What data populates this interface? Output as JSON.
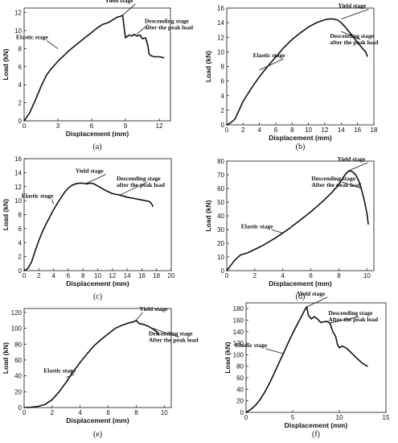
{
  "chart_data": [
    {
      "type": "line",
      "caption": "(a)",
      "xlabel": "Displacement (mm)",
      "ylabel": "Load (kN)",
      "xlim": [
        0,
        13
      ],
      "ylim": [
        0,
        12.5
      ],
      "xticks": [
        0,
        3,
        6,
        9,
        12
      ],
      "yticks": [
        0,
        2,
        4,
        6,
        8,
        10,
        12
      ],
      "x": [
        0,
        0.5,
        1,
        1.5,
        2,
        2.5,
        3,
        3.5,
        4,
        4.5,
        5,
        5.5,
        6,
        6.5,
        7,
        7.5,
        8,
        8.3,
        8.6,
        8.75,
        8.9,
        9.0,
        9.3,
        9.6,
        9.8,
        10,
        10.3,
        10.5,
        10.8,
        11.0,
        11.1,
        11.3,
        11.6,
        12.0,
        12.4
      ],
      "y": [
        0,
        0.9,
        2.3,
        3.8,
        5.1,
        5.9,
        6.6,
        7.2,
        7.8,
        8.3,
        8.8,
        9.3,
        9.8,
        10.3,
        10.7,
        10.9,
        11.3,
        11.5,
        11.6,
        11.7,
        10.2,
        9.2,
        9.5,
        9.4,
        9.6,
        9.4,
        9.5,
        9.1,
        9.2,
        8.3,
        7.4,
        7.2,
        7.1,
        7.1,
        7.0
      ],
      "annotations": [
        {
          "text": "Elastic stage",
          "x": 3.0,
          "y": 8.0
        },
        {
          "text": "Yield stage",
          "x": 8.75,
          "y": 11.7
        },
        {
          "text": "Descending stage",
          "x": 10.0,
          "y": 9.6
        },
        {
          "text": "after the peak load",
          "x": 10.0,
          "y": 9.6
        }
      ]
    },
    {
      "type": "line",
      "caption": "(b)",
      "xlabel": "Displacement (mm)",
      "ylabel": "Load (kN)",
      "xlim": [
        0,
        18
      ],
      "ylim": [
        0,
        16
      ],
      "xticks": [
        0,
        2,
        4,
        6,
        8,
        10,
        12,
        14,
        16,
        18
      ],
      "yticks": [
        0,
        2,
        4,
        6,
        8,
        10,
        12,
        14,
        16
      ],
      "x": [
        0,
        0.5,
        1,
        1.5,
        2,
        3,
        4,
        5,
        6,
        7,
        8,
        9,
        10,
        11,
        12,
        12.5,
        13,
        13.5,
        14,
        14.5,
        15,
        15.5,
        16,
        16.5,
        17,
        17.2
      ],
      "y": [
        0,
        0.3,
        0.8,
        2.0,
        3.2,
        5.0,
        6.6,
        8.0,
        9.3,
        10.6,
        11.7,
        12.6,
        13.4,
        14.0,
        14.4,
        14.5,
        14.5,
        14.4,
        14.0,
        13.4,
        12.7,
        12.0,
        11.3,
        10.6,
        10.0,
        9.4
      ],
      "annotations": [
        {
          "text": "Elastic stage",
          "x": 4.0,
          "y": 7.5
        },
        {
          "text": "Yield stage",
          "x": 14.0,
          "y": 14.5
        },
        {
          "text": "Descending stage",
          "x": 14.0,
          "y": 12.8
        },
        {
          "text": "after the peak load",
          "x": 14.0,
          "y": 12.8
        }
      ]
    },
    {
      "type": "line",
      "caption": "(c)",
      "xlabel": "Displacement (mm)",
      "ylabel": "Load (kN)",
      "xlim": [
        0,
        20
      ],
      "ylim": [
        0,
        16
      ],
      "xticks": [
        0,
        2,
        4,
        6,
        8,
        10,
        12,
        14,
        16,
        18,
        20
      ],
      "yticks": [
        0,
        2,
        4,
        6,
        8,
        10,
        12,
        14,
        16
      ],
      "x": [
        0,
        0.5,
        1,
        1.5,
        2,
        2.5,
        3,
        3.5,
        4,
        4.5,
        5,
        5.5,
        6,
        6.5,
        7,
        7.5,
        8,
        8.5,
        9,
        9.5,
        10,
        11,
        12,
        13,
        14,
        15,
        16,
        17,
        17.3,
        17.5
      ],
      "y": [
        0,
        0.3,
        1.2,
        2.8,
        4.3,
        5.6,
        6.7,
        7.7,
        8.7,
        9.6,
        10.4,
        11.2,
        11.8,
        12.2,
        12.4,
        12.5,
        12.5,
        12.4,
        12.5,
        12.4,
        12.1,
        11.5,
        11.0,
        10.8,
        10.5,
        10.3,
        10.1,
        9.9,
        9.6,
        9.2
      ],
      "annotations": [
        {
          "text": "Elastic stage",
          "x": 4.0,
          "y": 9.5
        },
        {
          "text": "Yield stage",
          "x": 8.5,
          "y": 12.5
        },
        {
          "text": "Descending stage",
          "x": 13.0,
          "y": 10.8
        },
        {
          "text": "after the peak load",
          "x": 13.0,
          "y": 10.8
        }
      ]
    },
    {
      "type": "line",
      "caption": "(d)",
      "xlabel": "Displacement (mm)",
      "ylabel": "Load (kN)",
      "xlim": [
        0,
        10.5
      ],
      "ylim": [
        0,
        80
      ],
      "xticks": [
        0,
        2,
        4,
        6,
        8,
        10
      ],
      "yticks": [
        0,
        10,
        20,
        30,
        40,
        50,
        60,
        70,
        80
      ],
      "x": [
        0,
        0.3,
        0.6,
        1,
        1.5,
        2,
        2.5,
        3,
        3.5,
        4,
        4.5,
        5,
        5.5,
        6,
        6.5,
        7,
        7.5,
        8,
        8.3,
        8.6,
        8.8,
        9.0,
        9.2,
        9.4,
        9.6,
        9.8,
        10.0,
        10.1
      ],
      "y": [
        0,
        4,
        8,
        11.5,
        13,
        15.5,
        18,
        21,
        24,
        27.5,
        31,
        35,
        39,
        43,
        47.5,
        52,
        57,
        63,
        68,
        72,
        73,
        72,
        70,
        66,
        60,
        52,
        42,
        34
      ],
      "annotations": [
        {
          "text": "Elastic stage",
          "x": 4.0,
          "y": 27.5
        },
        {
          "text": "Yield stage",
          "x": 8.7,
          "y": 73.0
        },
        {
          "text": "Descending stage",
          "x": 9.6,
          "y": 60.0
        },
        {
          "text": "After the peak load",
          "x": 9.6,
          "y": 60.0
        }
      ]
    },
    {
      "type": "line",
      "caption": "(e)",
      "xlabel": "Displacement (mm)",
      "ylabel": "Load (kN)",
      "xlim": [
        0,
        10.5
      ],
      "ylim": [
        0,
        125
      ],
      "xticks": [
        0,
        2,
        4,
        6,
        8,
        10
      ],
      "yticks": [
        0,
        20,
        40,
        60,
        80,
        100,
        120
      ],
      "x": [
        0,
        0.5,
        1,
        1.5,
        2,
        2.5,
        3,
        3.5,
        4,
        4.5,
        5,
        5.5,
        6,
        6.5,
        7,
        7.5,
        7.8,
        8.0,
        8.2,
        8.5,
        8.8,
        9.0,
        9.3,
        9.5,
        9.6
      ],
      "y": [
        0,
        0.5,
        1.5,
        4,
        10,
        20,
        32,
        45,
        57,
        68,
        78,
        86,
        93,
        100,
        104,
        107,
        108,
        110,
        106,
        105,
        103,
        101,
        98,
        95,
        92
      ],
      "annotations": [
        {
          "text": "Elastic stage",
          "x": 3.0,
          "y": 38.0
        },
        {
          "text": "Yield stage",
          "x": 8.0,
          "y": 110.0
        },
        {
          "text": "Descending stage",
          "x": 9.0,
          "y": 101.0
        },
        {
          "text": "After the peak load",
          "x": 9.0,
          "y": 101.0
        }
      ]
    },
    {
      "type": "line",
      "caption": "(f)",
      "xlabel": "Displacement (mm)",
      "ylabel": "Load (kN)",
      "xlim": [
        0,
        15
      ],
      "ylim": [
        0,
        190
      ],
      "xticks": [
        0,
        5,
        10,
        15
      ],
      "yticks": [
        0,
        20,
        40,
        60,
        80,
        100,
        120,
        140,
        160,
        180
      ],
      "x": [
        0,
        0.5,
        1,
        1.5,
        2,
        2.5,
        3,
        3.5,
        4,
        4.5,
        5,
        5.5,
        6,
        6.3,
        6.5,
        6.7,
        7.0,
        7.3,
        7.6,
        8.0,
        8.3,
        8.6,
        9.0,
        9.3,
        9.6,
        9.8,
        10.0,
        10.3,
        10.7,
        11.0,
        11.5,
        12.0,
        12.5,
        13.0
      ],
      "y": [
        0,
        5,
        12,
        22,
        35,
        50,
        67,
        85,
        102,
        120,
        137,
        153,
        168,
        178,
        183,
        168,
        162,
        166,
        163,
        156,
        157,
        158,
        155,
        140,
        132,
        118,
        112,
        115,
        112,
        108,
        100,
        92,
        85,
        80
      ],
      "annotations": [
        {
          "text": "Elastic stage",
          "x": 4.0,
          "y": 102.0
        },
        {
          "text": "Yield stage",
          "x": 6.5,
          "y": 183.0
        },
        {
          "text": "Descending stage",
          "x": 9.0,
          "y": 155.0
        },
        {
          "text": "After the peak load",
          "x": 9.0,
          "y": 155.0
        }
      ]
    }
  ]
}
